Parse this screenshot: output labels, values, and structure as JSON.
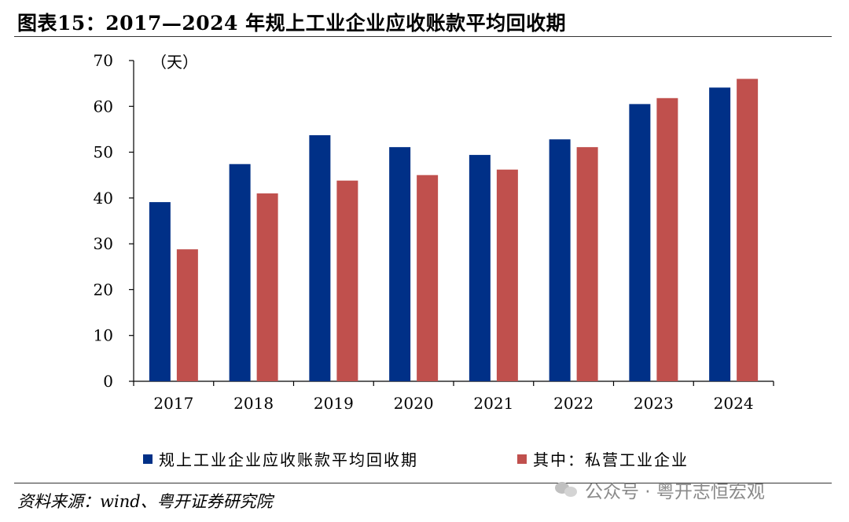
{
  "header": {
    "title": "图表15：2017—2024 年规上工业企业应收账款平均回收期"
  },
  "footer": {
    "source": "资料来源：wind、粤开证券研究院",
    "watermark": "公众号 · 粤开志恒宏观"
  },
  "colors": {
    "series_1": "#003087",
    "series_2": "#c0504d",
    "axis": "#000000"
  },
  "chart_data": {
    "type": "bar",
    "title": "",
    "xlabel": "",
    "ylabel": "",
    "unit_label": "（天）",
    "categories": [
      "2017",
      "2018",
      "2019",
      "2020",
      "2021",
      "2022",
      "2023",
      "2024"
    ],
    "ylim": [
      0,
      70
    ],
    "yticks": [
      "0",
      "10",
      "20",
      "30",
      "40",
      "50",
      "60",
      "70"
    ],
    "grid": false,
    "legend_position": "bottom",
    "series": [
      {
        "name": "规上工业企业应收账款平均回收期",
        "values": [
          39.1,
          47.4,
          53.7,
          51.1,
          49.4,
          52.8,
          60.5,
          64.1
        ]
      },
      {
        "name": "其中：私营工业企业",
        "values": [
          28.8,
          41.0,
          43.8,
          45.0,
          46.2,
          51.1,
          61.8,
          66.0
        ]
      }
    ]
  }
}
